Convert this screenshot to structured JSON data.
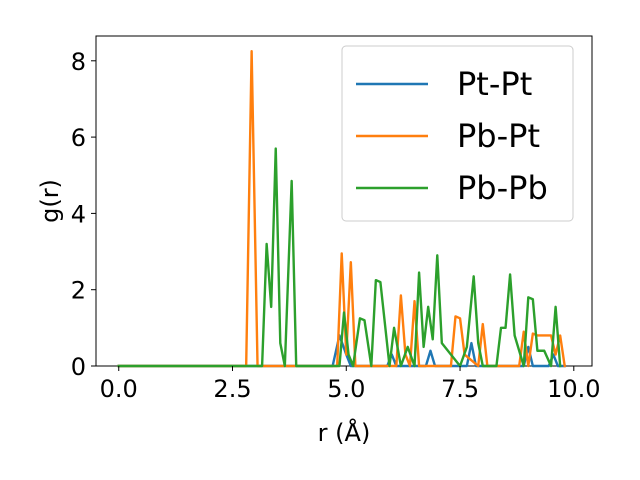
{
  "chart_data": {
    "type": "line",
    "title": "",
    "xlabel": "r (Å)",
    "ylabel": "g(r)",
    "xlim": [
      -0.5,
      10.4
    ],
    "ylim": [
      0,
      8.65
    ],
    "xticks": [
      {
        "value": 0.0,
        "label": "0.0"
      },
      {
        "value": 2.5,
        "label": "2.5"
      },
      {
        "value": 5.0,
        "label": "5.0"
      },
      {
        "value": 7.5,
        "label": "7.5"
      },
      {
        "value": 10.0,
        "label": "10.0"
      }
    ],
    "yticks": [
      {
        "value": 0,
        "label": "0"
      },
      {
        "value": 2,
        "label": "2"
      },
      {
        "value": 4,
        "label": "4"
      },
      {
        "value": 6,
        "label": "6"
      },
      {
        "value": 8,
        "label": "8"
      }
    ],
    "grid": false,
    "legend_position": "top-right",
    "series": [
      {
        "name": "Pt-Pt",
        "color": "#1f77b4",
        "x": [
          0,
          4.7,
          4.85,
          5.0,
          5.1,
          5.9,
          6.0,
          6.1,
          6.75,
          6.85,
          6.95,
          7.65,
          7.75,
          7.85,
          8.9,
          9.0,
          9.1,
          9.45,
          9.55,
          9.65,
          9.8
        ],
        "y": [
          0,
          0,
          0.8,
          0.3,
          0,
          0,
          0.3,
          0,
          0,
          0.4,
          0,
          0,
          0.6,
          0,
          0,
          0.5,
          0,
          0,
          0.3,
          0,
          0
        ]
      },
      {
        "name": "Pb-Pt",
        "color": "#ff7f0e",
        "x": [
          0,
          2.8,
          2.92,
          3.05,
          4.8,
          4.9,
          5.0,
          5.1,
          5.2,
          6.1,
          6.2,
          6.3,
          6.4,
          6.5,
          6.6,
          7.3,
          7.4,
          7.5,
          7.6,
          7.9,
          8.0,
          8.1,
          8.8,
          8.9,
          9.0,
          9.1,
          9.2,
          9.5,
          9.6,
          9.7,
          9.8
        ],
        "y": [
          0,
          0,
          8.25,
          0,
          0,
          2.95,
          0.3,
          2.72,
          0,
          0,
          1.85,
          0.3,
          0,
          1.7,
          0,
          0,
          1.3,
          1.25,
          0.3,
          0,
          1.1,
          0,
          0,
          0.9,
          0,
          0.85,
          0.8,
          0.8,
          0.3,
          0.8,
          0
        ]
      },
      {
        "name": "Pb-Pb",
        "color": "#2ca02c",
        "x": [
          0,
          3.15,
          3.25,
          3.35,
          3.45,
          3.55,
          3.65,
          3.8,
          3.9,
          4.0,
          4.85,
          4.95,
          5.05,
          5.15,
          5.3,
          5.4,
          5.55,
          5.65,
          5.75,
          5.95,
          6.05,
          6.2,
          6.35,
          6.5,
          6.6,
          6.7,
          6.8,
          6.9,
          7.0,
          7.1,
          7.5,
          7.65,
          7.8,
          7.9,
          8.0,
          8.3,
          8.4,
          8.5,
          8.6,
          8.7,
          8.9,
          9.0,
          9.1,
          9.2,
          9.35,
          9.5,
          9.6,
          9.7
        ],
        "y": [
          0,
          0,
          3.2,
          1.55,
          5.7,
          0.6,
          0,
          4.85,
          0,
          0,
          0,
          1.4,
          0.3,
          0,
          1.25,
          1.2,
          0,
          2.25,
          2.2,
          0,
          1.0,
          0,
          0.5,
          0,
          2.45,
          0.5,
          1.55,
          0.7,
          2.9,
          0.6,
          0,
          0.5,
          2.35,
          0.6,
          0,
          0,
          1.0,
          1.0,
          2.4,
          0.8,
          0,
          1.8,
          1.75,
          0.4,
          0.4,
          0,
          1.55,
          0
        ]
      }
    ]
  }
}
